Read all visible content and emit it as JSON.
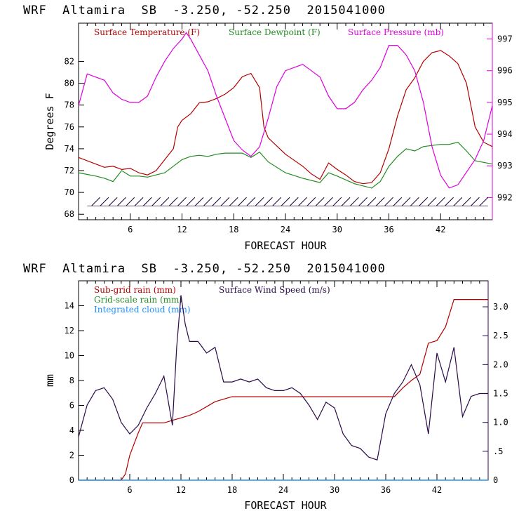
{
  "charts": [
    {
      "title": "WRF  Altamira  SB  -3.250, -52.250  2015041000",
      "xlabel": "FORECAST HOUR",
      "ylabel": "Degrees F",
      "x_ticks": [
        "6",
        "12",
        "18",
        "24",
        "30",
        "36",
        "42"
      ],
      "y_ticks": [
        "68",
        "70",
        "72",
        "74",
        "76",
        "78",
        "80",
        "82"
      ],
      "y2_ticks": [
        "992",
        "993",
        "994",
        "995",
        "996",
        "997"
      ],
      "legend": [
        {
          "label": "Surface Temperature (F)",
          "color": "#b30000"
        },
        {
          "label": "Surface Dewpoint (F)",
          "color": "#228b22"
        },
        {
          "label": "Surface Pressure (mb)",
          "color": "#dd00dd"
        }
      ]
    },
    {
      "title": "WRF  Altamira  SB  -3.250, -52.250  2015041000",
      "xlabel": "FORECAST HOUR",
      "ylabel": "mm",
      "x_ticks": [
        "6",
        "12",
        "18",
        "24",
        "30",
        "36",
        "42"
      ],
      "y_ticks": [
        "0",
        "2",
        "4",
        "6",
        "8",
        "10",
        "12",
        "14"
      ],
      "y2_ticks": [
        "0",
        ".5",
        "1.0",
        "1.5",
        "2.0",
        "2.5",
        "3.0"
      ],
      "legend": [
        {
          "label": "Sub-grid rain (mm)",
          "color": "#b30000"
        },
        {
          "label": "Surface Wind Speed (m/s)",
          "color": "#2b0a4a"
        },
        {
          "label": "Grid-scale rain (mm)",
          "color": "#228b22"
        },
        {
          "label": "Integrated cloud (mm)",
          "color": "#1e90ff"
        }
      ]
    }
  ],
  "chart_data": [
    {
      "type": "line",
      "title": "WRF  Altamira  SB  -3.250, -52.250  2015041000",
      "xlabel": "FORECAST HOUR",
      "ylabel": "Degrees F",
      "xlim": [
        0,
        48
      ],
      "ylim": [
        67.5,
        85.5
      ],
      "y2lim": [
        991.3,
        997.5
      ],
      "series": [
        {
          "name": "Surface Temperature (F)",
          "axis": "left",
          "color": "#b30000",
          "x": [
            0,
            2,
            3,
            4,
            5,
            6,
            7,
            8,
            9,
            10,
            11,
            11.5,
            12,
            13,
            14,
            15,
            16,
            17,
            18,
            19,
            20,
            21,
            21.5,
            22,
            24,
            26,
            27,
            28,
            29,
            30,
            31,
            32,
            33,
            34,
            35,
            36,
            37,
            38,
            39,
            40,
            41,
            42,
            43,
            44,
            45,
            46,
            47,
            48
          ],
          "y": [
            73.2,
            72.6,
            72.3,
            72.4,
            72.1,
            72.2,
            71.8,
            71.6,
            72.0,
            73.0,
            74.0,
            76.0,
            76.6,
            77.2,
            78.2,
            78.3,
            78.6,
            79.0,
            79.6,
            80.6,
            80.9,
            79.6,
            76.0,
            75.0,
            73.5,
            72.4,
            71.7,
            71.2,
            72.7,
            72.1,
            71.6,
            71.0,
            70.8,
            70.9,
            71.8,
            74.0,
            77.0,
            79.4,
            80.5,
            82.0,
            82.8,
            83.0,
            82.5,
            81.8,
            80.0,
            76.0,
            74.6,
            74.2
          ]
        },
        {
          "name": "Surface Dewpoint (F)",
          "axis": "left",
          "color": "#228b22",
          "x": [
            0,
            2,
            3,
            4,
            5,
            6,
            7,
            8,
            9,
            10,
            11,
            12,
            13,
            14,
            15,
            16,
            17,
            18,
            19,
            20,
            21,
            22,
            24,
            26,
            28,
            29,
            30,
            32,
            34,
            35,
            36,
            37,
            38,
            39,
            40,
            41,
            42,
            43,
            44,
            45,
            46,
            48
          ],
          "y": [
            71.8,
            71.5,
            71.3,
            71.0,
            72.0,
            71.5,
            71.5,
            71.4,
            71.6,
            71.8,
            72.4,
            73.0,
            73.3,
            73.4,
            73.3,
            73.5,
            73.6,
            73.6,
            73.6,
            73.2,
            73.7,
            72.8,
            71.8,
            71.3,
            70.9,
            71.8,
            71.5,
            70.8,
            70.4,
            71.0,
            72.4,
            73.3,
            74.0,
            73.8,
            74.2,
            74.3,
            74.4,
            74.4,
            74.6,
            73.8,
            72.9,
            72.6
          ]
        },
        {
          "name": "Surface Pressure (mb)",
          "axis": "right",
          "color": "#dd00dd",
          "x": [
            0,
            1,
            2,
            3,
            4,
            5,
            6,
            7,
            8,
            9,
            10,
            11,
            12,
            12.5,
            13,
            14,
            15,
            16,
            17,
            18,
            19,
            20,
            21,
            22,
            23,
            24,
            25,
            26,
            27,
            28,
            29,
            30,
            31,
            32,
            33,
            34,
            35,
            36,
            37,
            38,
            39,
            40,
            41,
            42,
            43,
            44,
            45,
            46,
            47,
            48
          ],
          "y": [
            994.9,
            995.9,
            995.8,
            995.7,
            995.3,
            995.1,
            995.0,
            995.0,
            995.2,
            995.8,
            996.3,
            996.7,
            997.0,
            997.2,
            997.0,
            996.5,
            996.0,
            995.2,
            994.5,
            993.8,
            993.5,
            993.3,
            993.6,
            994.5,
            995.5,
            996.0,
            996.1,
            996.2,
            996.0,
            995.8,
            995.2,
            994.8,
            994.8,
            995.0,
            995.4,
            995.7,
            996.1,
            996.8,
            996.8,
            996.5,
            996.0,
            995.0,
            993.6,
            992.7,
            992.3,
            992.4,
            992.8,
            993.2,
            993.8,
            994.9
          ]
        }
      ]
    },
    {
      "type": "line",
      "title": "WRF  Altamira  SB  -3.250, -52.250  2015041000",
      "xlabel": "FORECAST HOUR",
      "ylabel": "mm",
      "xlim": [
        0,
        48
      ],
      "ylim": [
        0,
        16
      ],
      "y2lim": [
        0,
        3.45
      ],
      "series": [
        {
          "name": "Sub-grid rain (mm)",
          "axis": "left",
          "color": "#b30000",
          "x": [
            0,
            5,
            5.5,
            6,
            7,
            7.5,
            10,
            11,
            12,
            13,
            14,
            15,
            16,
            17,
            18,
            24,
            30,
            37,
            38,
            39,
            40,
            41,
            42,
            43,
            44,
            48
          ],
          "y": [
            0,
            0,
            0.5,
            2,
            3.8,
            4.6,
            4.6,
            4.8,
            5.0,
            5.2,
            5.5,
            5.9,
            6.3,
            6.5,
            6.7,
            6.7,
            6.7,
            6.7,
            7.4,
            8.0,
            8.5,
            11.0,
            11.2,
            12.3,
            14.5,
            14.5
          ]
        },
        {
          "name": "Surface Wind Speed (m/s)",
          "axis": "right",
          "color": "#2b0a4a",
          "x": [
            0,
            1,
            2,
            3,
            4,
            5,
            6,
            7,
            8,
            9,
            10,
            11,
            11.5,
            12,
            12.5,
            13,
            14,
            15,
            16,
            17,
            18,
            19,
            20,
            21,
            22,
            23,
            24,
            25,
            26,
            27,
            28,
            29,
            30,
            31,
            32,
            33,
            34,
            35,
            36,
            37,
            38,
            39,
            40,
            41,
            42,
            43,
            44,
            45,
            46,
            47,
            48
          ],
          "y": [
            0.75,
            1.3,
            1.55,
            1.6,
            1.4,
            1.0,
            0.8,
            0.95,
            1.25,
            1.5,
            1.8,
            0.95,
            2.3,
            3.2,
            2.7,
            2.4,
            2.4,
            2.2,
            2.3,
            1.7,
            1.7,
            1.75,
            1.7,
            1.75,
            1.6,
            1.55,
            1.55,
            1.6,
            1.5,
            1.3,
            1.05,
            1.35,
            1.25,
            0.8,
            0.6,
            0.55,
            0.4,
            0.35,
            1.15,
            1.5,
            1.7,
            2.0,
            1.65,
            0.8,
            2.2,
            1.7,
            2.3,
            1.1,
            1.45,
            1.5,
            1.5
          ]
        },
        {
          "name": "Grid-scale rain (mm)",
          "axis": "left",
          "color": "#228b22",
          "x": [
            0,
            48
          ],
          "y": [
            0,
            0
          ]
        },
        {
          "name": "Integrated cloud (mm)",
          "axis": "left",
          "color": "#1e90ff",
          "x": [
            0,
            48
          ],
          "y": [
            0,
            0
          ]
        }
      ]
    }
  ]
}
